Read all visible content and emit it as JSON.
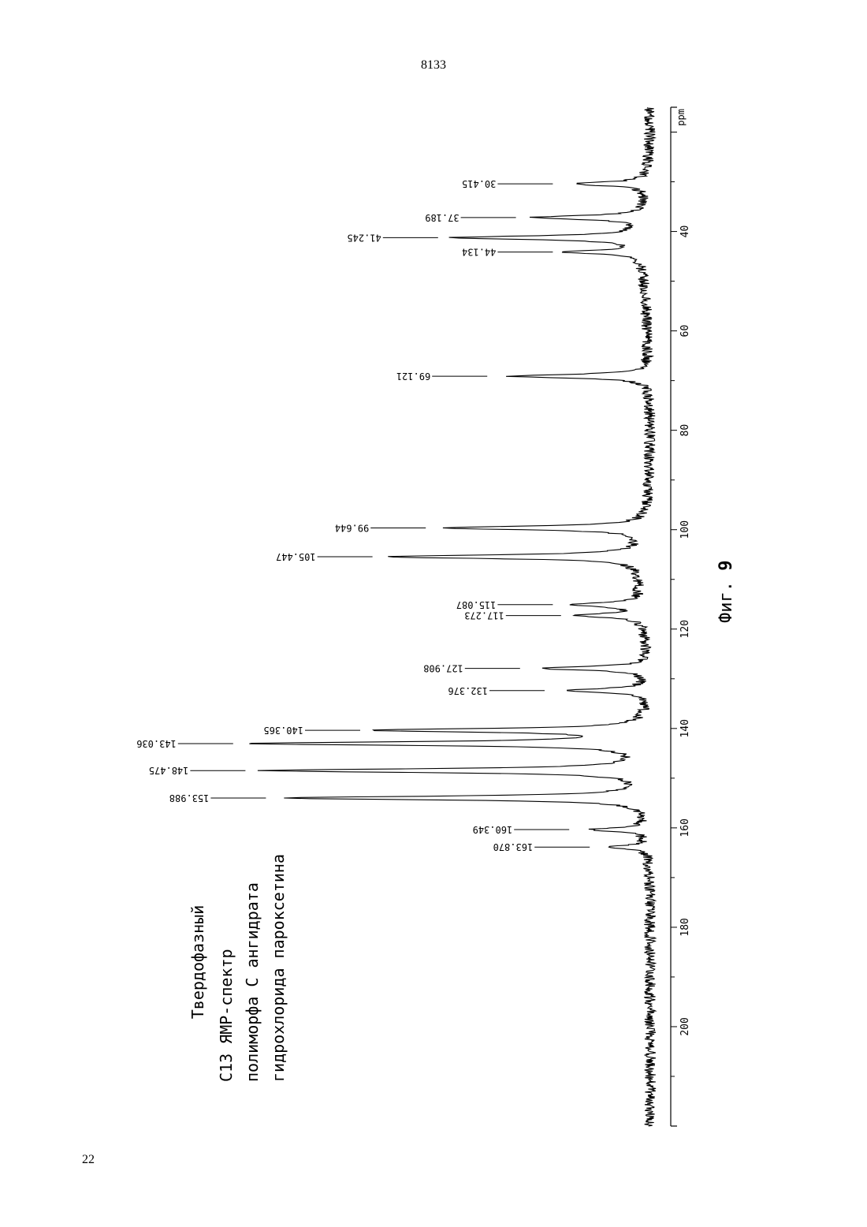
{
  "header": {
    "page_number": "8133"
  },
  "footer": {
    "page_index": "22"
  },
  "chart_data": {
    "type": "line",
    "title": "Фиг. 9",
    "title_prefix": "Фиг.",
    "title_number": "9",
    "caption_lines": [
      "Твердофазный",
      "C13 ЯМР-спектр",
      "полиморфа С ангидрата",
      "гидрохлорида пароксетина"
    ],
    "xlabel": "ppm",
    "xlim": [
      220,
      15
    ],
    "x_ticks": [
      200,
      180,
      160,
      140,
      120,
      100,
      80,
      60,
      40
    ],
    "grid": false,
    "peaks": [
      {
        "x": 163.87,
        "label": "163.870",
        "height": 0.09
      },
      {
        "x": 160.349,
        "label": "160.349",
        "height": 0.14
      },
      {
        "x": 153.988,
        "label": "153.988",
        "height": 0.88
      },
      {
        "x": 148.475,
        "label": "148.475",
        "height": 0.93
      },
      {
        "x": 143.036,
        "label": "143.036",
        "height": 0.96
      },
      {
        "x": 140.365,
        "label": "140.365",
        "height": 0.65
      },
      {
        "x": 132.376,
        "label": "132.376",
        "height": 0.2
      },
      {
        "x": 127.908,
        "label": "127.908",
        "height": 0.26
      },
      {
        "x": 117.273,
        "label": "117.273",
        "height": 0.16
      },
      {
        "x": 115.087,
        "label": "115.087",
        "height": 0.18
      },
      {
        "x": 105.447,
        "label": "105.447",
        "height": 0.62
      },
      {
        "x": 99.644,
        "label": "99.644",
        "height": 0.49
      },
      {
        "x": 69.121,
        "label": "69.121",
        "height": 0.34
      },
      {
        "x": 44.134,
        "label": "44.134",
        "height": 0.18
      },
      {
        "x": 41.245,
        "label": "41.245",
        "height": 0.46
      },
      {
        "x": 37.189,
        "label": "37.189",
        "height": 0.27
      },
      {
        "x": 30.415,
        "label": "30.415",
        "height": 0.18
      }
    ]
  }
}
